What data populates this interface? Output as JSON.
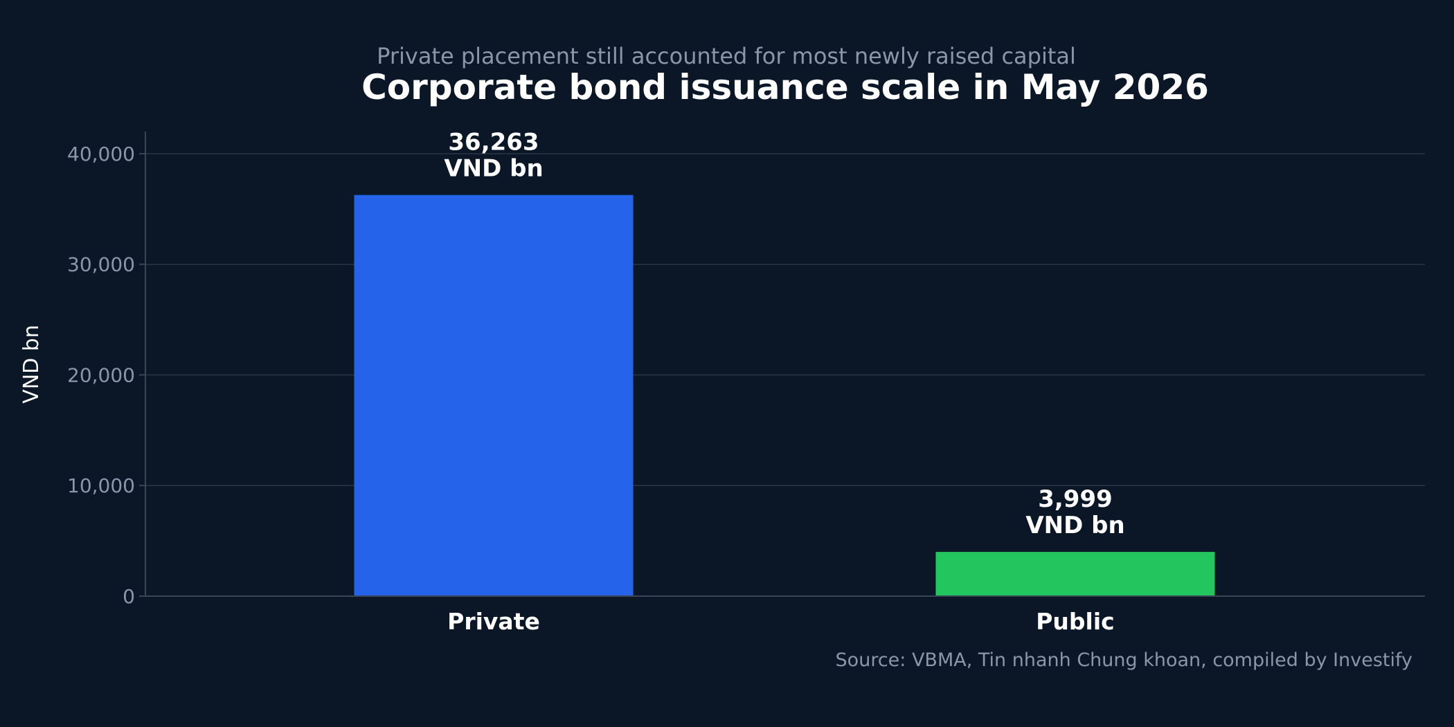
{
  "chart_data": {
    "type": "bar",
    "title": "Corporate bond issuance scale in May 2026",
    "subtitle": "Private placement still accounted for most newly raised capital",
    "xlabel": "",
    "ylabel": "VND bn",
    "categories": [
      "Private",
      "Public"
    ],
    "values": [
      36263,
      3999
    ],
    "value_labels": [
      [
        "36,263",
        "VND bn"
      ],
      [
        "3,999",
        "VND bn"
      ]
    ],
    "colors": [
      "#2563eb",
      "#22c55e"
    ],
    "ylim": [
      0,
      42000
    ],
    "yticks": [
      0,
      10000,
      20000,
      30000,
      40000
    ],
    "ytick_labels": [
      "0",
      "10,000",
      "20,000",
      "30,000",
      "40,000"
    ],
    "grid": true,
    "source": "Source: VBMA, Tin nhanh Chung khoan, compiled by Investify"
  }
}
